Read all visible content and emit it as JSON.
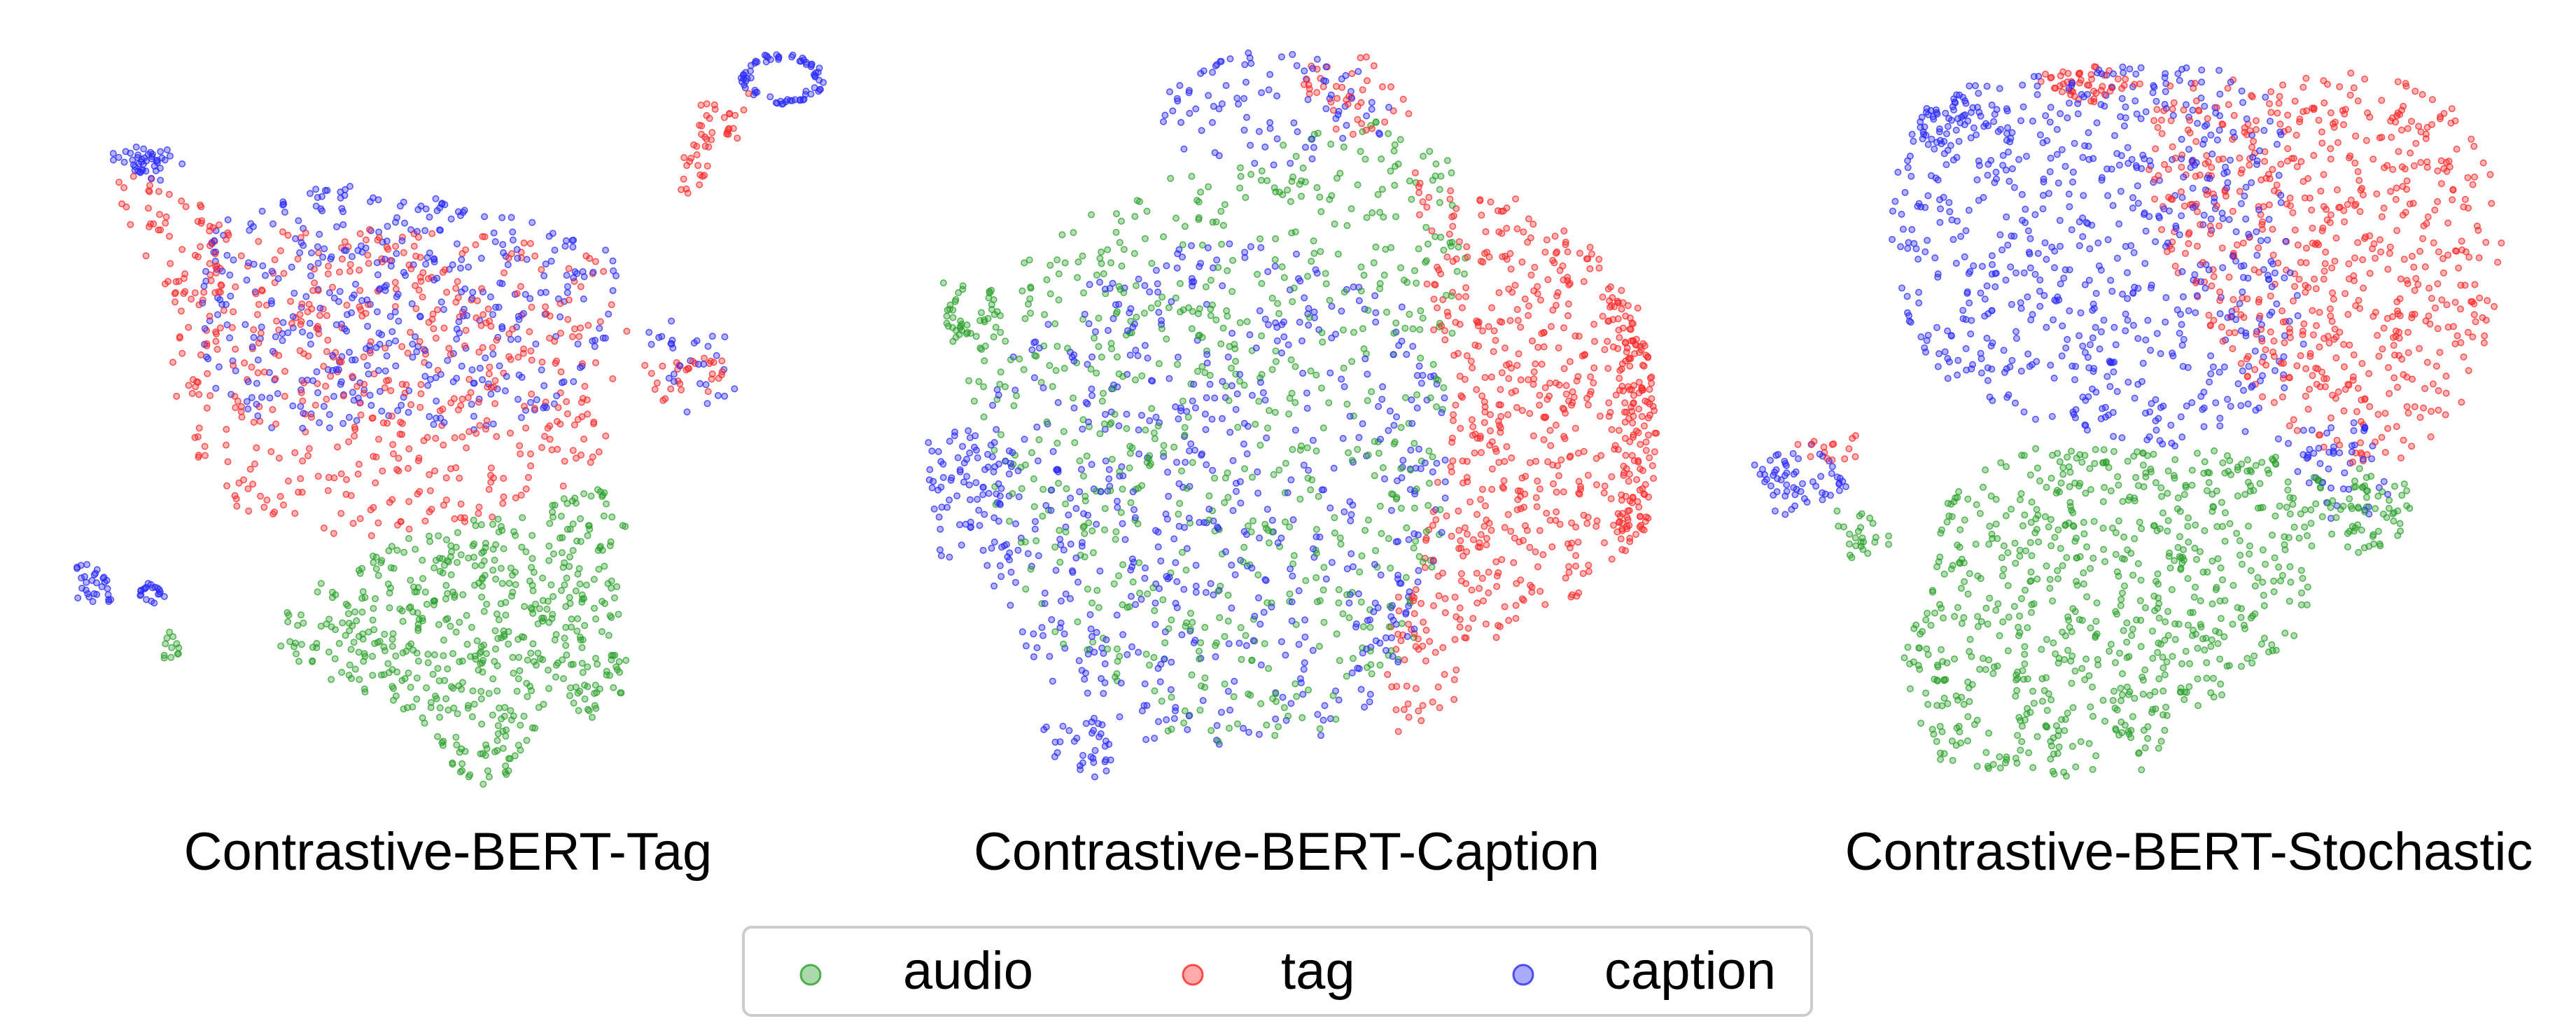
{
  "chart_data": {
    "type": "scatter",
    "panels": [
      {
        "title": "Contrastive-BERT-Tag"
      },
      {
        "title": "Contrastive-BERT-Caption"
      },
      {
        "title": "Contrastive-BERT-Stochastic"
      }
    ],
    "series": [
      {
        "name": "audio",
        "color": "#2ca02c"
      },
      {
        "name": "tag",
        "color": "#ff2a2a"
      },
      {
        "name": "caption",
        "color": "#2a2aff"
      }
    ],
    "axes": "hidden",
    "grid": false,
    "legend": {
      "placement": "bottom-center",
      "orientation": "horizontal"
    }
  }
}
